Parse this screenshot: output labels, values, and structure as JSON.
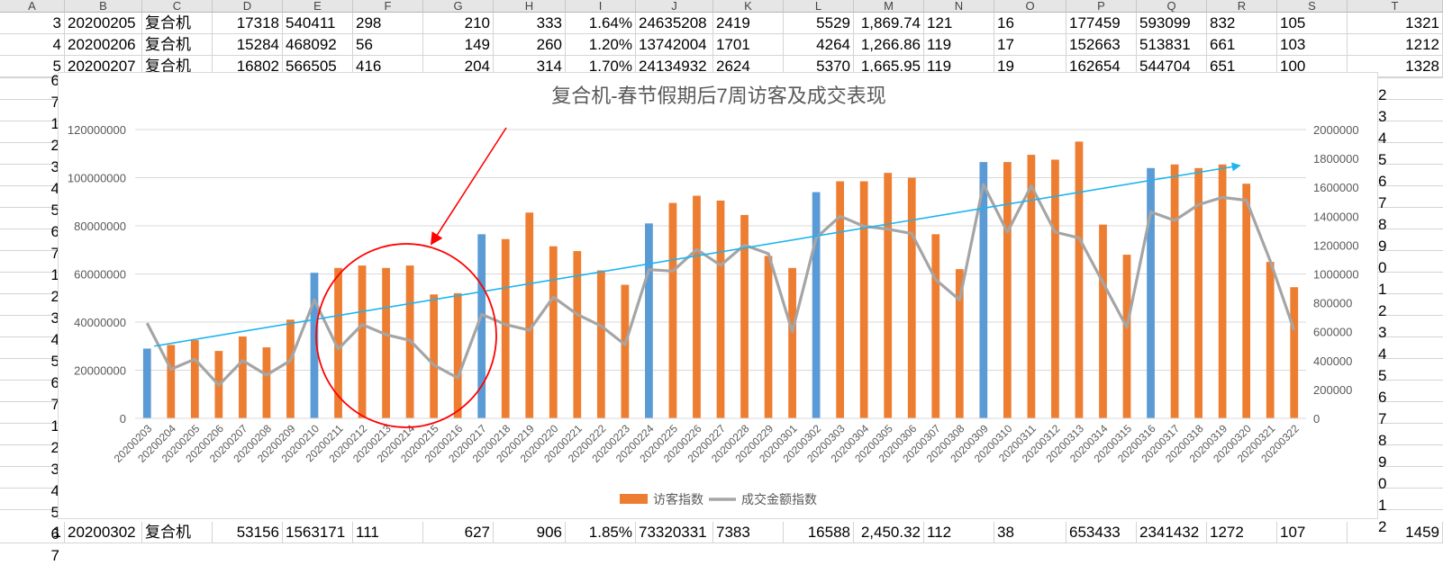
{
  "columns": [
    "A",
    "B",
    "C",
    "D",
    "E",
    "F",
    "G",
    "H",
    "I",
    "J",
    "K",
    "L",
    "M",
    "N",
    "O",
    "P",
    "Q",
    "R",
    "S",
    "T"
  ],
  "rows": [
    {
      "num": "3",
      "cells": [
        "20200205",
        "复合机",
        "17318",
        "540411",
        "298",
        "210",
        "333",
        "1.64%",
        "24635208",
        "2419",
        "5529",
        "1,869.74",
        "121",
        "16",
        "177459",
        "593099",
        "832",
        "105",
        "1321"
      ]
    },
    {
      "num": "4",
      "cells": [
        "20200206",
        "复合机",
        "15284",
        "468092",
        "56",
        "149",
        "260",
        "1.20%",
        "13742004",
        "1701",
        "4264",
        "1,266.86",
        "119",
        "17",
        "152663",
        "513831",
        "661",
        "103",
        "1212"
      ]
    },
    {
      "num": "5",
      "cells": [
        "20200207",
        "复合机",
        "16802",
        "566505",
        "416",
        "204",
        "314",
        "1.70%",
        "24134932",
        "2624",
        "5370",
        "1,665.95",
        "119",
        "19",
        "162654",
        "544704",
        "651",
        "100",
        "1328"
      ]
    }
  ],
  "bottom_row": {
    "num": "1",
    "cells": [
      "20200302",
      "复合机",
      "53156",
      "1563171",
      "111",
      "627",
      "906",
      "1.85%",
      "73320331",
      "7383",
      "16588",
      "2,450.32",
      "112",
      "38",
      "653433",
      "2341432",
      "1272",
      "107",
      "1459"
    ]
  },
  "left_row_numbers": [
    "6",
    "7",
    "1",
    "2",
    "3",
    "4",
    "5",
    "6",
    "7",
    "1",
    "2",
    "3",
    "4",
    "5",
    "6",
    "7",
    "1",
    "2",
    "3",
    "4",
    "5",
    "6",
    "7"
  ],
  "right_edge_numbers": [
    "2",
    "3",
    "4",
    "5",
    "6",
    "7",
    "8",
    "9",
    "0",
    "1",
    "2",
    "3",
    "4",
    "5",
    "6",
    "7",
    "8",
    "9",
    "0",
    "1",
    "2"
  ],
  "chart_data": {
    "type": "bar",
    "title": "复合机-春节假期后7周访客及成交表现",
    "categories": [
      "20200203",
      "20200204",
      "20200205",
      "20200206",
      "20200207",
      "20200208",
      "20200209",
      "20200210",
      "20200211",
      "20200212",
      "20200213",
      "20200214",
      "20200215",
      "20200216",
      "20200217",
      "20200218",
      "20200219",
      "20200220",
      "20200221",
      "20200222",
      "20200223",
      "20200224",
      "20200225",
      "20200226",
      "20200227",
      "20200228",
      "20200229",
      "20200301",
      "20200302",
      "20200303",
      "20200304",
      "20200305",
      "20200306",
      "20200307",
      "20200308",
      "20200309",
      "20200310",
      "20200311",
      "20200312",
      "20200313",
      "20200314",
      "20200315",
      "20200316",
      "20200317",
      "20200318",
      "20200319",
      "20200320",
      "20200321",
      "20200322"
    ],
    "series": [
      {
        "name": "访客指数",
        "type": "bar",
        "axis": "left",
        "color": "#ed7d31",
        "highlight_color": "#5b9bd5",
        "highlight_indices": [
          0,
          7,
          14,
          21,
          28,
          35,
          42
        ],
        "values": [
          29000000,
          30500000,
          32500000,
          28000000,
          34000000,
          29500000,
          41000000,
          60500000,
          62500000,
          63500000,
          62500000,
          63500000,
          51500000,
          52000000,
          76500000,
          74500000,
          85500000,
          71500000,
          69500000,
          61500000,
          55500000,
          81000000,
          89500000,
          92500000,
          90500000,
          84500000,
          67500000,
          62500000,
          94000000,
          98500000,
          98500000,
          102000000,
          100000000,
          76500000,
          62000000,
          106500000,
          106500000,
          109500000,
          107500000,
          115000000,
          80500000,
          68000000,
          104000000,
          105500000,
          104000000,
          105500000,
          97500000,
          65000000,
          54500000
        ]
      },
      {
        "name": "成交金额指数",
        "type": "line",
        "axis": "right",
        "color": "#a5a5a5",
        "values": [
          660000,
          340000,
          410000,
          230000,
          400000,
          300000,
          400000,
          820000,
          480000,
          650000,
          580000,
          540000,
          370000,
          280000,
          720000,
          650000,
          610000,
          840000,
          720000,
          640000,
          510000,
          1030000,
          1020000,
          1170000,
          1060000,
          1200000,
          1140000,
          600000,
          1250000,
          1400000,
          1330000,
          1310000,
          1280000,
          960000,
          820000,
          1620000,
          1290000,
          1610000,
          1290000,
          1250000,
          940000,
          630000,
          1430000,
          1370000,
          1480000,
          1530000,
          1510000,
          1090000,
          610000
        ]
      }
    ],
    "y_left": {
      "min": 0,
      "max": 120000000,
      "ticks": [
        "0",
        "20000000",
        "40000000",
        "60000000",
        "80000000",
        "100000000",
        "120000000"
      ]
    },
    "y_right": {
      "min": 0,
      "max": 2000000,
      "ticks": [
        "0",
        "200000",
        "400000",
        "600000",
        "800000",
        "1000000",
        "1200000",
        "1400000",
        "1600000",
        "1800000",
        "2000000"
      ]
    },
    "legend": [
      "访客指数",
      "成交金额指数"
    ],
    "legend_position": "bottom",
    "annotations": {
      "trend_arrow_color": "#1eb4ee",
      "callout_color": "#ff0000"
    }
  }
}
